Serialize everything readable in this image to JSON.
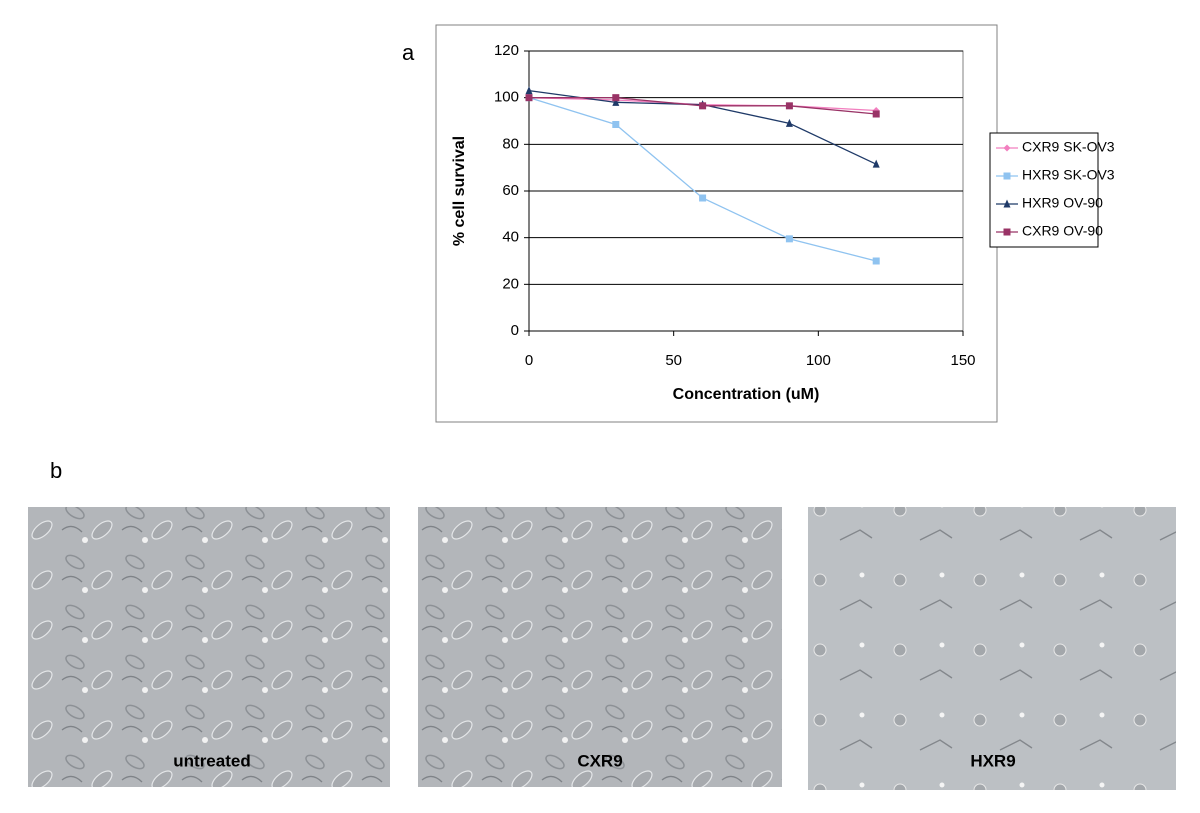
{
  "panel_labels": [
    "a",
    "b"
  ],
  "chart_data": {
    "type": "line",
    "x_label": "Concentration (uM)",
    "y_label": "% cell survival",
    "x": [
      0,
      30,
      60,
      90,
      120
    ],
    "xlim": [
      0,
      150
    ],
    "xticks": [
      0,
      50,
      100,
      150
    ],
    "ylim": [
      0,
      120
    ],
    "yticks": [
      0,
      20,
      40,
      60,
      80,
      100,
      120
    ],
    "grid": true,
    "legend": "right",
    "series": [
      {
        "name": "CXR9 SK-OV3",
        "color": "#f27fbf",
        "marker": "diamond",
        "values": [
          100,
          99,
          97,
          96.5,
          94.5
        ]
      },
      {
        "name": "HXR9 SK-OV3",
        "color": "#8fc3f0",
        "marker": "square",
        "values": [
          100,
          88.5,
          57,
          39.5,
          30
        ]
      },
      {
        "name": "HXR9 OV-90",
        "color": "#1f3a68",
        "marker": "triangle",
        "values": [
          103,
          98,
          97,
          89,
          71.5
        ]
      },
      {
        "name": "CXR9 OV-90",
        "color": "#993366",
        "marker": "square",
        "values": [
          100,
          100,
          96.5,
          96.5,
          93
        ]
      }
    ]
  },
  "images": [
    {
      "caption": "untreated"
    },
    {
      "caption": "CXR9"
    },
    {
      "caption": "HXR9"
    }
  ]
}
